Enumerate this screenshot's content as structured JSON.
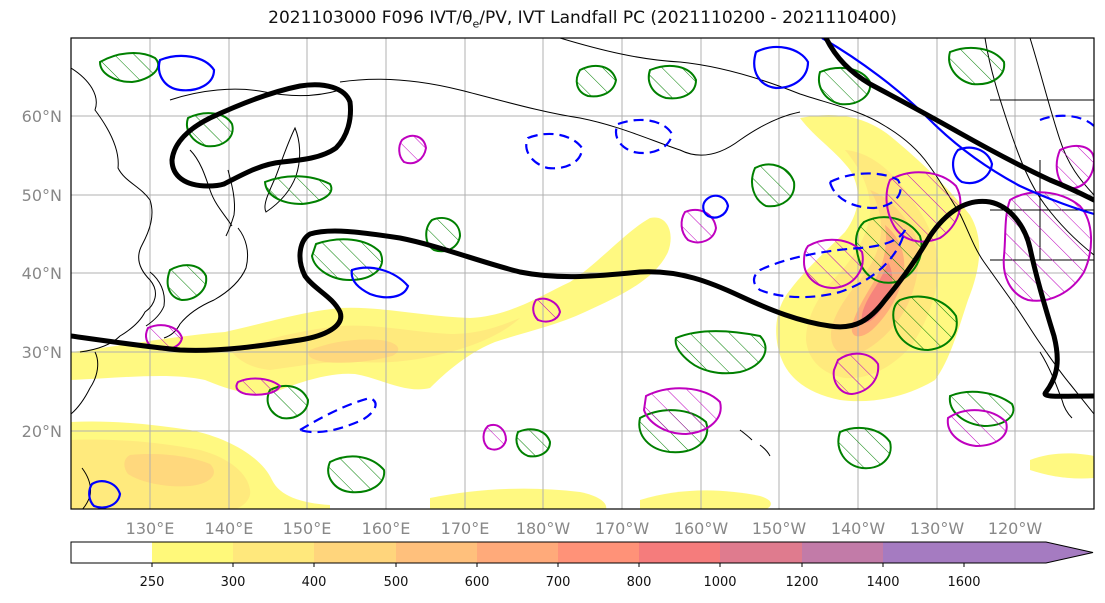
{
  "figure": {
    "title_main": "2021103000 F096 IVT/θ",
    "title_sub": "e",
    "title_rest": "/PV, IVT Landfall PC (2021110200 - 2021110400)"
  },
  "map": {
    "extent": {
      "lon_min": 120,
      "lon_max": 250,
      "lat_min": 10,
      "lat_max": 70
    },
    "lat_ticks": [
      {
        "value": 20,
        "label": "20°N"
      },
      {
        "value": 30,
        "label": "30°N"
      },
      {
        "value": 40,
        "label": "40°N"
      },
      {
        "value": 50,
        "label": "50°N"
      },
      {
        "value": 60,
        "label": "60°N"
      }
    ],
    "lon_ticks": [
      {
        "value": 130,
        "label": "130°E"
      },
      {
        "value": 140,
        "label": "140°E"
      },
      {
        "value": 150,
        "label": "150°E"
      },
      {
        "value": 160,
        "label": "160°E"
      },
      {
        "value": 170,
        "label": "170°E"
      },
      {
        "value": 180,
        "label": "180°W"
      },
      {
        "value": 190,
        "label": "170°W"
      },
      {
        "value": 200,
        "label": "160°W"
      },
      {
        "value": 210,
        "label": "150°W"
      },
      {
        "value": 220,
        "label": "140°W"
      },
      {
        "value": 230,
        "label": "130°W"
      },
      {
        "value": 240,
        "label": "120°W"
      }
    ],
    "colors": {
      "theta_e_contour": "#000000",
      "pv_positive": "#0000ff",
      "pv_negative_dashed": "#0000ff",
      "green_contours": "#008000",
      "magenta_contours": "#bf00bf",
      "gridline": "#b0b0b0"
    }
  },
  "colorbar": {
    "levels": [
      250,
      300,
      400,
      500,
      600,
      700,
      800,
      1000,
      1200,
      1400,
      1600
    ],
    "colors": [
      "#ffffff",
      "#fff97a",
      "#ffe87c",
      "#ffd57c",
      "#ffc07c",
      "#ffaa7a",
      "#ff9278",
      "#f57c7c",
      "#df7b8e",
      "#c27ba8",
      "#a57bc1"
    ]
  }
}
